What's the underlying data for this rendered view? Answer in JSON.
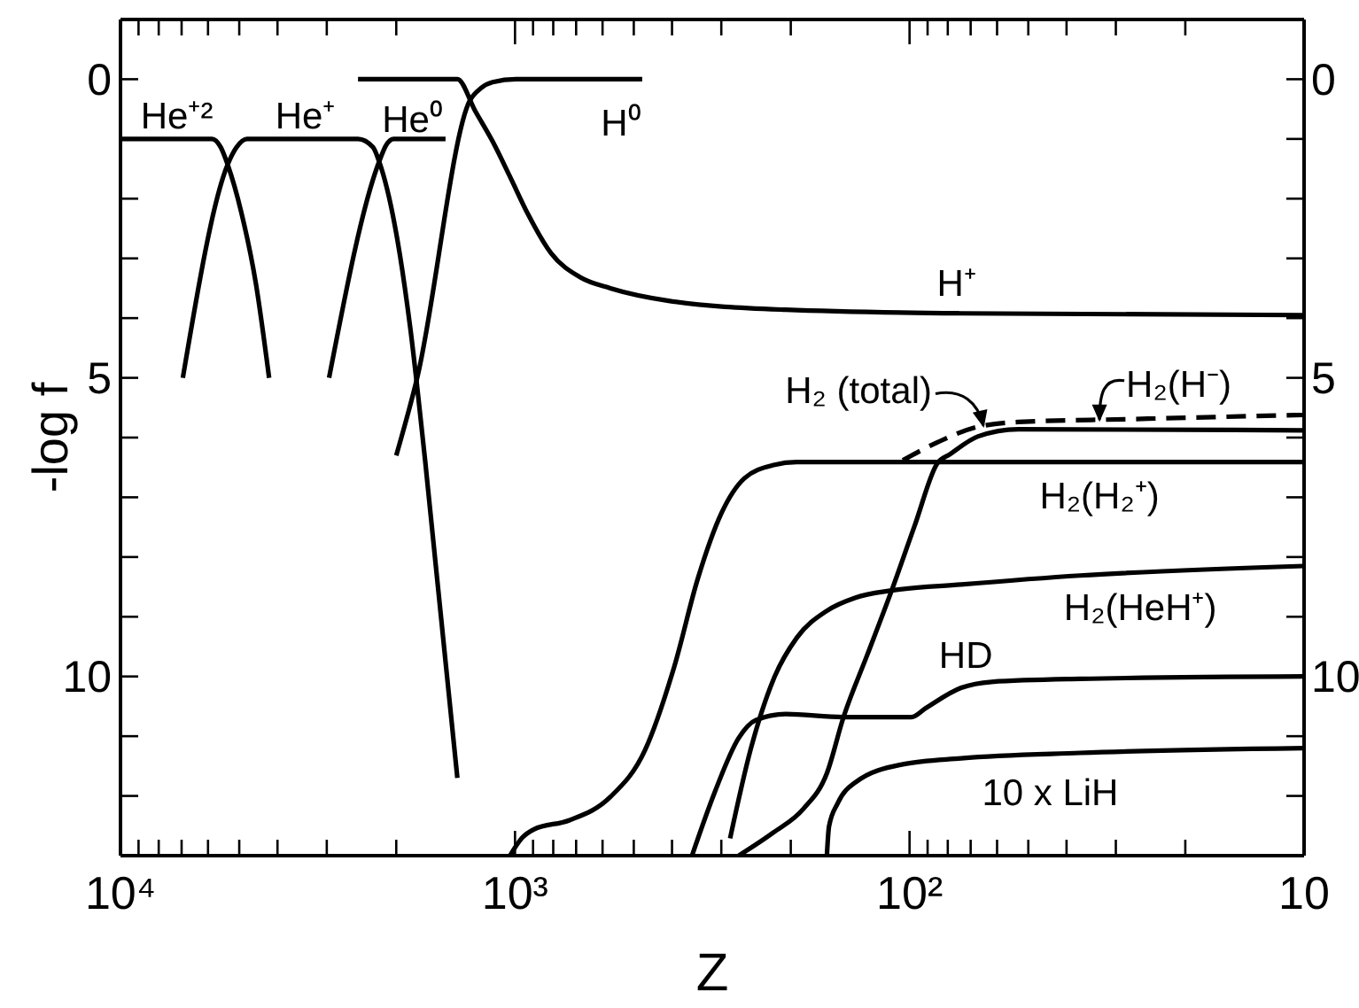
{
  "chart_data": {
    "type": "line",
    "xlabel": "Z",
    "ylabel": "-log f",
    "log": "x",
    "xlim": [
      10000,
      10
    ],
    "ylim": [
      13,
      -1
    ],
    "y2lim": [
      13,
      -1
    ],
    "xticks": [
      {
        "value": 10000,
        "label": "10⁴"
      },
      {
        "value": 9000,
        "label": null
      },
      {
        "value": 8000,
        "label": null
      },
      {
        "value": 7000,
        "label": null
      },
      {
        "value": 6000,
        "label": null
      },
      {
        "value": 5000,
        "label": null
      },
      {
        "value": 4000,
        "label": null
      },
      {
        "value": 3000,
        "label": null
      },
      {
        "value": 2000,
        "label": null
      },
      {
        "value": 1000,
        "label": "10³"
      },
      {
        "value": 900,
        "label": null
      },
      {
        "value": 800,
        "label": null
      },
      {
        "value": 700,
        "label": null
      },
      {
        "value": 600,
        "label": null
      },
      {
        "value": 500,
        "label": null
      },
      {
        "value": 400,
        "label": null
      },
      {
        "value": 300,
        "label": null
      },
      {
        "value": 200,
        "label": null
      },
      {
        "value": 100,
        "label": "10²"
      },
      {
        "value": 90,
        "label": null
      },
      {
        "value": 80,
        "label": null
      },
      {
        "value": 70,
        "label": null
      },
      {
        "value": 60,
        "label": null
      },
      {
        "value": 50,
        "label": null
      },
      {
        "value": 40,
        "label": null
      },
      {
        "value": 30,
        "label": null
      },
      {
        "value": 20,
        "label": null
      },
      10
    ],
    "yticks": [
      0,
      {
        "value": 1,
        "label": null
      },
      {
        "value": 2,
        "label": null
      },
      {
        "value": 3,
        "label": null
      },
      {
        "value": 4,
        "label": null
      },
      5,
      {
        "value": 6,
        "label": null
      },
      {
        "value": 7,
        "label": null
      },
      {
        "value": 8,
        "label": null
      },
      {
        "value": 9,
        "label": null
      },
      10,
      {
        "value": 11,
        "label": null
      },
      {
        "value": 12,
        "label": null
      }
    ],
    "y2ticks": [
      0,
      {
        "value": 1,
        "label": null
      },
      {
        "value": 2,
        "label": null
      },
      {
        "value": 3,
        "label": null
      },
      {
        "value": 4,
        "label": null
      },
      5,
      {
        "value": 6,
        "label": null
      },
      {
        "value": 7,
        "label": null
      },
      {
        "value": 8,
        "label": null
      },
      {
        "value": 9,
        "label": null
      },
      10,
      {
        "value": 11,
        "label": null
      },
      {
        "value": 12,
        "label": null
      }
    ],
    "line_style": "solid",
    "series": [
      {
        "color": "#000000",
        "x": [
          10000,
          5860,
          5570,
          5350,
          4940,
          4540,
          4200
        ],
        "values": [
          1.0,
          1.0,
          1.14,
          1.43,
          2.23,
          3.41,
          5.0
        ]
      },
      {
        "color": "#000000",
        "x": [
          6950,
          5350,
          5080,
          4780,
          2500,
          2290,
          2210,
          1960,
          1840,
          1690,
          1400
        ],
        "values": [
          5.0,
          1.43,
          1.14,
          1.0,
          1.0,
          1.14,
          1.38,
          2.92,
          4.2,
          6.38,
          11.7
        ]
      },
      {
        "color": "#000000",
        "x": [
          2960,
          2210,
          2120,
          2030,
          1500
        ],
        "values": [
          5.0,
          1.38,
          1.1,
          1.0,
          1.0
        ]
      },
      {
        "color": "#000000",
        "x": [
          2000,
          1770,
          1300,
          1220,
          1140,
          993,
          476
        ],
        "values": [
          6.3,
          5.0,
          0.35,
          0.15,
          0.05,
          0,
          0
        ]
      },
      {
        "color": "#000000",
        "x": [
          2500,
          1400,
          1260,
          1140,
          1030,
          927,
          811,
          682,
          573,
          408,
          206,
          74,
          10
        ],
        "values": [
          0,
          0,
          0.54,
          1.04,
          1.63,
          2.26,
          2.91,
          3.32,
          3.5,
          3.71,
          3.86,
          3.92,
          3.95
        ]
      },
      {
        "color": "#000000",
        "x": [
          1030,
          959,
          896,
          730,
          574,
          468,
          395,
          344,
          300,
          262,
          221,
          193,
          10
        ],
        "values": [
          13.0,
          12.7,
          12.56,
          12.41,
          12.02,
          11.23,
          9.84,
          8.36,
          7.27,
          6.68,
          6.46,
          6.41,
          6.41
        ]
      },
      {
        "color": "#000000",
        "x": [
          271,
          221,
          186,
          162,
          147,
          128,
          111,
          97,
          85,
          79,
          67,
          53,
          10
        ],
        "values": [
          13.0,
          12.61,
          12.22,
          11.62,
          10.68,
          9.64,
          8.56,
          7.47,
          6.43,
          6.28,
          5.98,
          5.86,
          5.88
        ]
      },
      {
        "color": "#000000",
        "x": [
          356,
          311,
          271,
          245,
          206,
          147,
          99,
          91,
          74,
          62,
          37,
          10
        ],
        "values": [
          13.0,
          11.92,
          11.03,
          10.73,
          10.63,
          10.68,
          10.68,
          10.53,
          10.19,
          10.09,
          10.04,
          10.0
        ]
      },
      {
        "color": "#000000",
        "x": [
          285,
          253,
          221,
          193,
          162,
          137,
          111,
          74,
          37,
          10
        ],
        "values": [
          12.71,
          11.23,
          10.04,
          9.35,
          8.9,
          8.68,
          8.56,
          8.46,
          8.31,
          8.15
        ]
      },
      {
        "color": "#000000",
        "x": [
          162,
          160,
          152,
          137,
          104,
          74,
          37,
          10
        ],
        "values": [
          13.0,
          12.51,
          12.12,
          11.77,
          11.47,
          11.37,
          11.28,
          11.2
        ]
      },
      {
        "color": "#000000",
        "line_style": "dashed",
        "x": [
          104,
          85,
          69,
          53,
          27,
          10
        ],
        "values": [
          6.38,
          6.08,
          5.84,
          5.74,
          5.69,
          5.62
        ]
      }
    ],
    "annotations": [
      {
        "text": "He⁺²",
        "x": 7200,
        "y": 1.0
      },
      {
        "text": "He⁺",
        "x": 3400,
        "y": 1.0
      },
      {
        "text": "He⁰",
        "x": 1750,
        "y": 1.0
      },
      {
        "text": "H⁰",
        "x": 540,
        "y": 0
      },
      {
        "text": "H⁺",
        "x": 76,
        "y": 3.92
      },
      {
        "text": "H₂ (total)",
        "x": 65,
        "y": 5.8
      },
      {
        "text": "H₂(H⁻)",
        "x": 33,
        "y": 5.7
      },
      {
        "text": "H₂(H₂⁺)",
        "x": 33,
        "y": 6.41
      },
      {
        "text": "H₂(HeH⁺)",
        "x": 26,
        "y": 8.25
      },
      {
        "text": "HD",
        "x": 72,
        "y": 10.15
      },
      {
        "text": "10 x LiH",
        "x": 44,
        "y": 11.3
      }
    ]
  }
}
